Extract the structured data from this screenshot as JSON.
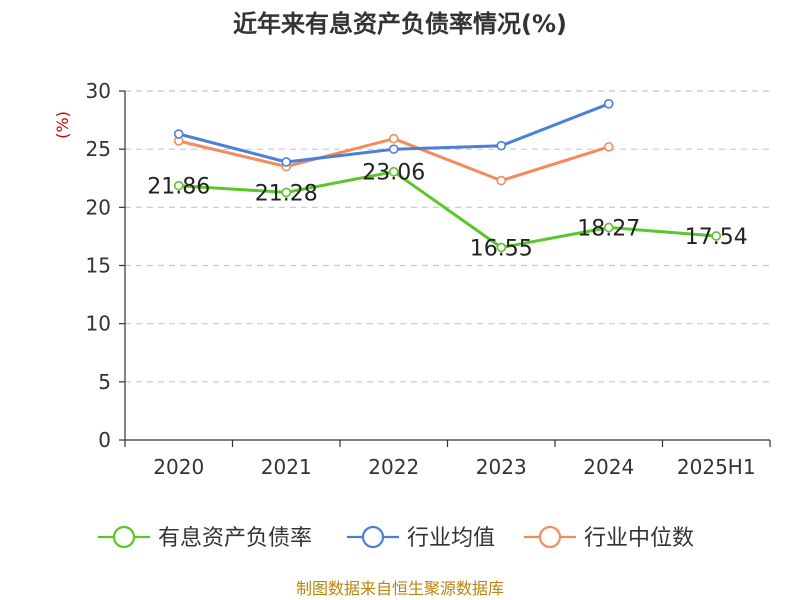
{
  "chart_data": {
    "type": "line",
    "title": "近年来有息资产负债率情况(%)",
    "y_unit": "(%)",
    "categories": [
      "2020",
      "2021",
      "2022",
      "2023",
      "2024",
      "2025H1"
    ],
    "ylim": [
      0,
      30
    ],
    "yticks": [
      "0",
      "5",
      "10",
      "15",
      "20",
      "25",
      "30"
    ],
    "grid": true,
    "legend_position": "bottom",
    "series": [
      {
        "name": "有息资产负债率",
        "color": "#5ac62a",
        "values": [
          21.86,
          21.28,
          23.06,
          16.55,
          18.27,
          17.54
        ],
        "labels": [
          "21.86",
          "21.28",
          "23.06",
          "16.55",
          "18.27",
          "17.54"
        ]
      },
      {
        "name": "行业均值",
        "color": "#4d7fd8",
        "values": [
          26.3,
          23.9,
          25.0,
          25.3,
          28.9,
          null
        ]
      },
      {
        "name": "行业中位数",
        "color": "#f58b5c",
        "values": [
          25.7,
          23.5,
          25.9,
          22.3,
          25.2,
          null
        ]
      }
    ],
    "source": "制图数据来自恒生聚源数据库"
  }
}
